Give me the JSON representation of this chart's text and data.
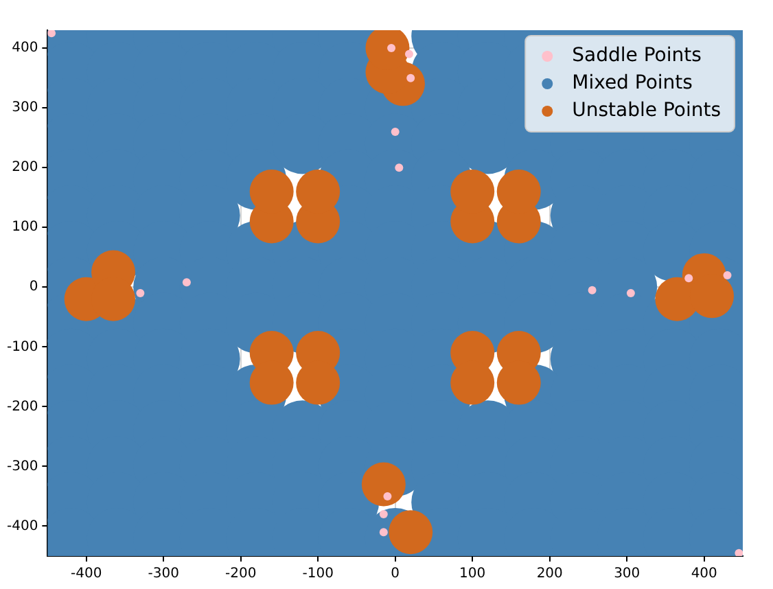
{
  "chart_data": {
    "type": "scatter",
    "legend": "top right",
    "grid": true,
    "marker": "circle",
    "xlim": [
      -450,
      450
    ],
    "ylim": [
      -450,
      430
    ],
    "xticks": [
      -400,
      -300,
      -200,
      -100,
      0,
      100,
      200,
      300,
      400
    ],
    "yticks": [
      -400,
      -300,
      -200,
      -100,
      0,
      100,
      200,
      300,
      400
    ],
    "series": [
      {
        "name": "Saddle Points",
        "color": "#ffc0cb",
        "x": [
          -445,
          445,
          -5,
          20,
          18,
          0,
          5,
          -15,
          -15,
          -10,
          380,
          -270,
          255,
          305,
          -330,
          430
        ],
        "values": [
          425,
          -445,
          400,
          350,
          390,
          260,
          200,
          -380,
          -410,
          -350,
          15,
          8,
          -5,
          -10,
          -10,
          20
        ]
      },
      {
        "name": "Mixed Points",
        "color": "#4682b4",
        "x": [
          -420,
          -360,
          -300,
          -240,
          -180,
          -120,
          -60,
          60,
          120,
          180,
          240,
          300,
          360,
          420,
          -420,
          -360,
          -300,
          -240,
          -180,
          -120,
          -60,
          60,
          120,
          180,
          240,
          300,
          360,
          420,
          -420,
          -360,
          -300,
          -240,
          -180,
          -120,
          -60,
          0,
          60,
          120,
          180,
          240,
          300,
          360,
          420,
          -420,
          -360,
          -300,
          -240,
          -180,
          -120,
          -60,
          0,
          60,
          120,
          180,
          240,
          300,
          360,
          420,
          -420,
          -360,
          -300,
          -240,
          -180,
          -60,
          0,
          60,
          180,
          240,
          300,
          360,
          420,
          -420,
          -360,
          -300,
          -240,
          -60,
          0,
          60,
          240,
          300,
          360,
          420,
          -420,
          -360,
          -300,
          -240,
          -180,
          -120,
          -60,
          0,
          60,
          120,
          180,
          240,
          300,
          360,
          420,
          -420,
          -300,
          -240,
          -180,
          -120,
          -60,
          0,
          60,
          120,
          180,
          240,
          300,
          420,
          -420,
          -360,
          -300,
          -240,
          -180,
          -120,
          -60,
          0,
          60,
          120,
          180,
          240,
          300,
          360,
          420,
          -420,
          -360,
          -300,
          -240,
          -60,
          0,
          60,
          240,
          300,
          360,
          420,
          -420,
          -360,
          -300,
          -240,
          -180,
          -60,
          0,
          60,
          180,
          240,
          300,
          360,
          420,
          -420,
          -360,
          -300,
          -240,
          -180,
          -120,
          -60,
          0,
          60,
          120,
          180,
          240,
          300,
          360,
          420,
          -420,
          -360,
          -300,
          -240,
          -180,
          -120,
          -60,
          0,
          60,
          120,
          180,
          240,
          300,
          360,
          420,
          -420,
          -360,
          -300,
          -240,
          -180,
          -120,
          -60,
          60,
          120,
          180,
          240,
          300,
          360,
          420,
          -420,
          -360,
          -300,
          -240,
          -180,
          -120,
          -60,
          0,
          60,
          120,
          180,
          240,
          300,
          360,
          420
        ],
        "values": [
          420,
          420,
          420,
          420,
          420,
          420,
          420,
          420,
          420,
          420,
          420,
          420,
          420,
          420,
          360,
          360,
          360,
          360,
          360,
          360,
          360,
          360,
          360,
          360,
          360,
          360,
          360,
          360,
          300,
          300,
          300,
          300,
          300,
          300,
          300,
          300,
          300,
          300,
          300,
          300,
          300,
          300,
          300,
          240,
          240,
          240,
          240,
          240,
          240,
          240,
          240,
          240,
          240,
          240,
          240,
          240,
          240,
          240,
          180,
          180,
          180,
          180,
          180,
          180,
          180,
          180,
          180,
          180,
          180,
          180,
          180,
          120,
          120,
          120,
          120,
          120,
          120,
          120,
          120,
          120,
          120,
          120,
          60,
          60,
          60,
          60,
          60,
          60,
          60,
          60,
          60,
          60,
          60,
          60,
          60,
          60,
          60,
          0,
          0,
          0,
          0,
          0,
          0,
          0,
          0,
          0,
          0,
          0,
          0,
          0,
          -60,
          -60,
          -60,
          -60,
          -60,
          -60,
          -60,
          -60,
          -60,
          -60,
          -60,
          -60,
          -60,
          -60,
          -60,
          -120,
          -120,
          -120,
          -120,
          -120,
          -120,
          -120,
          -120,
          -120,
          -120,
          -120,
          -180,
          -180,
          -180,
          -180,
          -180,
          -180,
          -180,
          -180,
          -180,
          -180,
          -180,
          -180,
          -180,
          -240,
          -240,
          -240,
          -240,
          -240,
          -240,
          -240,
          -240,
          -240,
          -240,
          -240,
          -240,
          -240,
          -240,
          -240,
          -300,
          -300,
          -300,
          -300,
          -300,
          -300,
          -300,
          -300,
          -300,
          -300,
          -300,
          -300,
          -300,
          -300,
          -300,
          -360,
          -360,
          -360,
          -360,
          -360,
          -360,
          -360,
          -360,
          -360,
          -360,
          -360,
          -360,
          -360,
          -360,
          -420,
          -420,
          -420,
          -420,
          -420,
          -420,
          -420,
          -420,
          -420,
          -420,
          -420,
          -420,
          -420,
          -420,
          -420
        ]
      },
      {
        "name": "Unstable Points",
        "color": "#d2691e",
        "x": [
          -100,
          -160,
          -100,
          -160,
          100,
          160,
          100,
          160,
          -100,
          -160,
          -100,
          -160,
          100,
          160,
          100,
          160,
          -400,
          -365,
          -365,
          400,
          365,
          410,
          10,
          -10,
          -10,
          20,
          -15
        ],
        "values": [
          110,
          110,
          160,
          160,
          110,
          110,
          160,
          160,
          -110,
          -110,
          -160,
          -160,
          -110,
          -110,
          -160,
          -160,
          -20,
          25,
          -20,
          20,
          -20,
          -15,
          340,
          360,
          400,
          -410,
          -330
        ]
      }
    ]
  }
}
